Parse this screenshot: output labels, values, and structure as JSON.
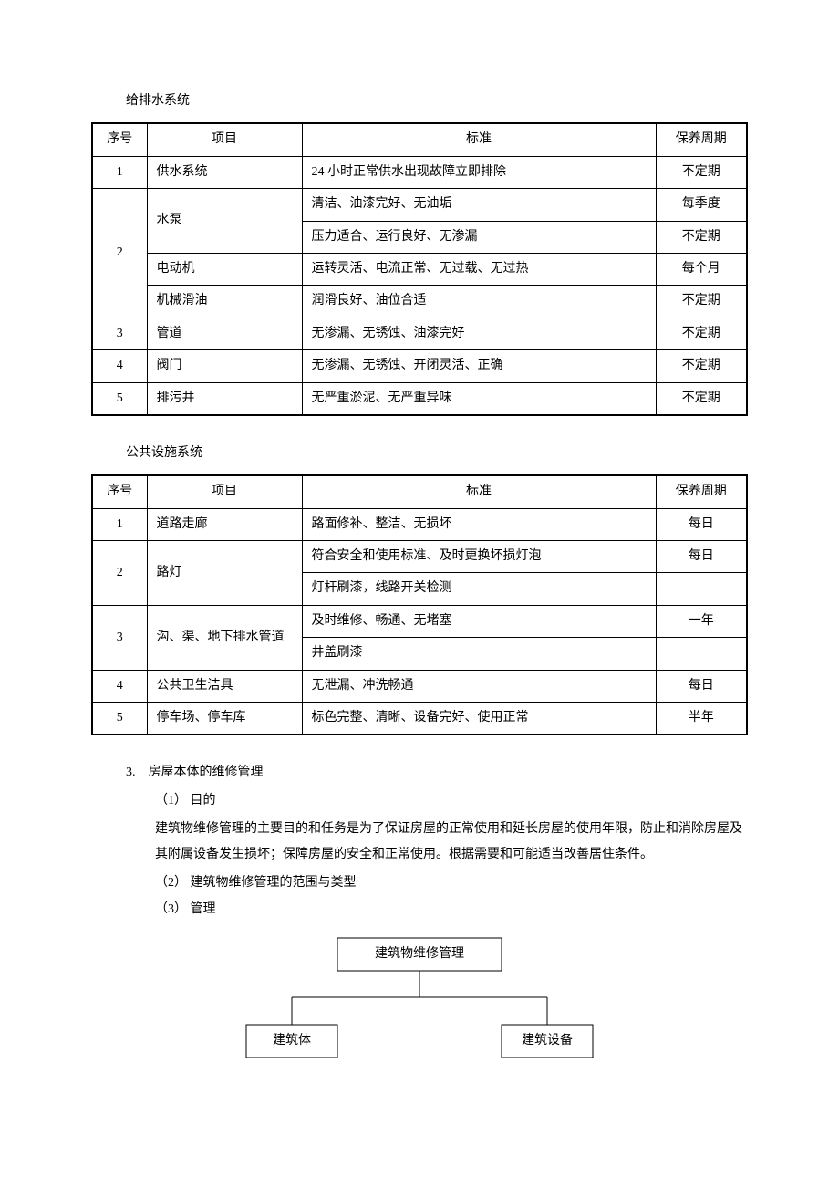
{
  "table1": {
    "title": "给排水系统",
    "columns": [
      "序号",
      "项目",
      "标准",
      "保养周期"
    ],
    "rows": [
      {
        "seq": "1",
        "item": "供水系统",
        "std": "24 小时正常供水出现故障立即排除",
        "period": "不定期",
        "seqRowspan": 1,
        "itemRowspan": 1
      },
      {
        "seq": "2",
        "item": "水泵",
        "std": "清洁、油漆完好、无油垢",
        "period": "每季度",
        "seqRowspan": 4,
        "itemRowspan": 2
      },
      {
        "seq": "",
        "item": "",
        "std": "压力适合、运行良好、无渗漏",
        "period": "不定期",
        "seqRowspan": 0,
        "itemRowspan": 0
      },
      {
        "seq": "",
        "item": "电动机",
        "std": "运转灵活、电流正常、无过载、无过热",
        "period": "每个月",
        "seqRowspan": 0,
        "itemRowspan": 1
      },
      {
        "seq": "",
        "item": "机械滑油",
        "std": "润滑良好、油位合适",
        "period": "不定期",
        "seqRowspan": 0,
        "itemRowspan": 1
      },
      {
        "seq": "3",
        "item": "管道",
        "std": "无渗漏、无锈蚀、油漆完好",
        "period": "不定期",
        "seqRowspan": 1,
        "itemRowspan": 1
      },
      {
        "seq": "4",
        "item": "阀门",
        "std": "无渗漏、无锈蚀、开闭灵活、正确",
        "period": "不定期",
        "seqRowspan": 1,
        "itemRowspan": 1
      },
      {
        "seq": "5",
        "item": "排污井",
        "std": "无严重淤泥、无严重异味",
        "period": "不定期",
        "seqRowspan": 1,
        "itemRowspan": 1
      }
    ]
  },
  "table2": {
    "title": "公共设施系统",
    "columns": [
      "序号",
      "项目",
      "标准",
      "保养周期"
    ],
    "rows": [
      {
        "seq": "1",
        "item": "道路走廊",
        "std": "路面修补、整洁、无损坏",
        "period": "每日",
        "seqRowspan": 1,
        "itemRowspan": 1
      },
      {
        "seq": "2",
        "item": "路灯",
        "std": "符合安全和使用标准、及时更换坏损灯泡",
        "period": "每日",
        "seqRowspan": 2,
        "itemRowspan": 2
      },
      {
        "seq": "",
        "item": "",
        "std": "灯杆刷漆，线路开关检测",
        "period": "",
        "seqRowspan": 0,
        "itemRowspan": 0
      },
      {
        "seq": "3",
        "item": "沟、渠、地下排水管道",
        "std": "及时维修、畅通、无堵塞",
        "period": "一年",
        "seqRowspan": 2,
        "itemRowspan": 2
      },
      {
        "seq": "",
        "item": "",
        "std": "井盖刷漆",
        "period": "",
        "seqRowspan": 0,
        "itemRowspan": 0
      },
      {
        "seq": "4",
        "item": "公共卫生洁具",
        "std": "无泄漏、冲洗畅通",
        "period": "每日",
        "seqRowspan": 1,
        "itemRowspan": 1
      },
      {
        "seq": "5",
        "item": "停车场、停车库",
        "std": "标色完整、清晰、设备完好、使用正常",
        "period": "半年",
        "seqRowspan": 1,
        "itemRowspan": 1
      }
    ]
  },
  "section3": {
    "heading": "3.　房屋本体的维修管理",
    "item1_label": "（1） 目的",
    "item1_text": "建筑物维修管理的主要目的和任务是为了保证房屋的正常使用和延长房屋的使用年限，防止和消除房屋及其附属设备发生损坏；保障房屋的安全和正常使用。根据需要和可能适当改善居住条件。",
    "item2_label": "（2） 建筑物维修管理的范围与类型",
    "item3_label": "（3） 管理"
  },
  "diagram": {
    "root": "建筑物维修管理",
    "left": "建筑体",
    "right": "建筑设备",
    "box_stroke": "#000000",
    "line_stroke": "#000000",
    "bg": "#ffffff",
    "fontsize": 14
  }
}
